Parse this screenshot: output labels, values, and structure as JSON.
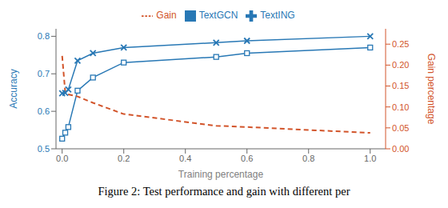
{
  "chart_data": {
    "type": "line",
    "caption": "Figure 2: Test performance and gain with different per",
    "x_label": "Training percentage",
    "y_label": "Accuracy",
    "y2_label": "Gain percentage",
    "x": [
      0.0,
      0.01,
      0.02,
      0.05,
      0.1,
      0.2,
      0.5,
      0.6,
      1.0
    ],
    "series": [
      {
        "name": "TextGCN",
        "color": "#2878b5",
        "marker": "square",
        "line_style": "solid",
        "values": [
          0.527,
          0.543,
          0.558,
          0.655,
          0.69,
          0.73,
          0.745,
          0.755,
          0.77
        ]
      },
      {
        "name": "TextING",
        "color": "#2878b5",
        "marker": "x",
        "line_style": "solid",
        "values": [
          0.648,
          0.649,
          0.658,
          0.735,
          0.755,
          0.77,
          0.783,
          0.788,
          0.8
        ]
      },
      {
        "name": "Gain",
        "color": "#d2542a",
        "marker": "none",
        "line_style": "dashed",
        "axis": "y2",
        "values": [
          0.222,
          0.135,
          0.13,
          0.125,
          0.11,
          0.083,
          0.055,
          0.052,
          0.038
        ]
      }
    ],
    "xlim": [
      -0.02,
      1.05
    ],
    "xticks": [
      {
        "value": 0.0,
        "label": "0.0"
      },
      0.2,
      0.4,
      0.6,
      0.8,
      {
        "value": 1.0,
        "label": "1.0"
      }
    ],
    "ylim": [
      0.5,
      0.82
    ],
    "yticks": [
      0.5,
      0.6,
      0.7,
      0.8
    ],
    "y2lim": [
      0.0,
      0.2867
    ],
    "y2ticks": [
      {
        "value": 0.0,
        "label": "0.00"
      },
      0.05,
      {
        "value": 0.1,
        "label": "0.10"
      },
      0.15,
      {
        "value": 0.2,
        "label": "0.20"
      },
      0.25
    ],
    "grid": false,
    "legend": "top"
  }
}
